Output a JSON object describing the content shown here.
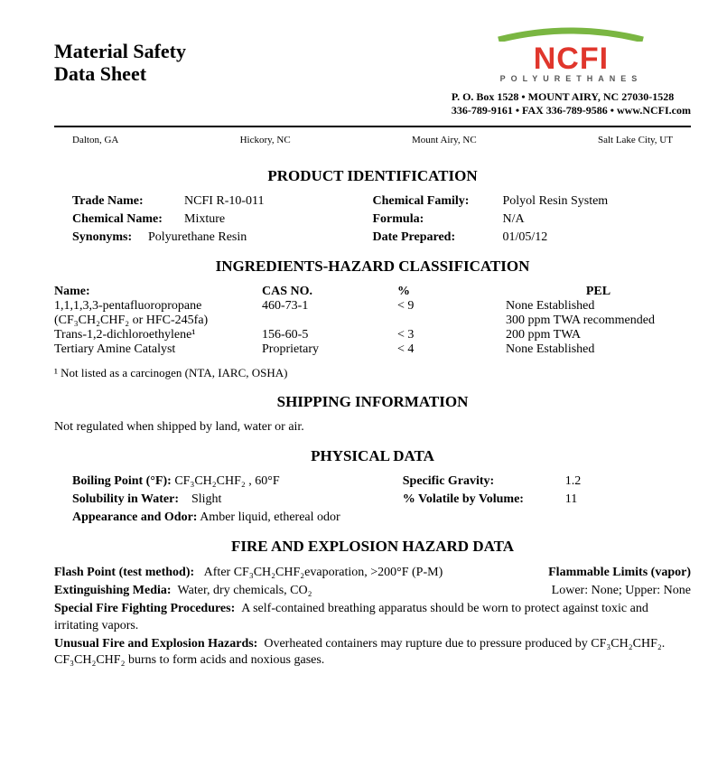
{
  "header": {
    "title_line1": "Material Safety",
    "title_line2": "Data Sheet",
    "logo_name": "NCFI",
    "logo_sub": "POLYURETHANES",
    "logo_color": "#e0362c",
    "arc_color": "#7ab642",
    "contact_line1": "P. O. Box 1528  •  MOUNT AIRY, NC  27030-1528",
    "contact_line2": "336-789-9161  •  FAX 336-789-9586  •  www.NCFI.com"
  },
  "locations": [
    "Dalton, GA",
    "Hickory, NC",
    "Mount Airy, NC",
    "Salt Lake City, UT"
  ],
  "sections": {
    "product_id": "PRODUCT IDENTIFICATION",
    "ingredients": "INGREDIENTS-HAZARD CLASSIFICATION",
    "shipping": "SHIPPING INFORMATION",
    "physical": "PHYSICAL DATA",
    "fire": "FIRE AND EXPLOSION HAZARD DATA"
  },
  "product": {
    "trade_name_label": "Trade Name:",
    "trade_name": "NCFI R-10-011",
    "chem_family_label": "Chemical Family:",
    "chem_family": "Polyol Resin System",
    "chem_name_label": "Chemical Name:",
    "chem_name": "Mixture",
    "formula_label": "Formula:",
    "formula": "N/A",
    "synonyms_label": "Synonyms:",
    "synonyms": "Polyurethane Resin",
    "date_label": "Date Prepared:",
    "date": "01/05/12"
  },
  "ingredients": {
    "headers": {
      "name": "Name:",
      "cas": "CAS NO.",
      "pct": "%",
      "pel": "PEL"
    },
    "rows": [
      {
        "name": "1,1,1,3,3-pentafluoropropane",
        "cas": "460-73-1",
        "pct": "< 9",
        "pel": "None Established"
      },
      {
        "name_html": "(CF₃CH₂CHF₂ or HFC-245fa)",
        "cas": "",
        "pct": "",
        "pel": "300 ppm TWA recommended"
      },
      {
        "name_html": "Trans-1,2-dichloroethylene¹",
        "cas": "156-60-5",
        "pct": "< 3",
        "pel": "200 ppm TWA"
      },
      {
        "name": "Tertiary Amine Catalyst",
        "cas": "Proprietary",
        "pct": "< 4",
        "pel": "None Established"
      }
    ],
    "footnote": "¹ Not listed as a carcinogen (NTA, IARC, OSHA)"
  },
  "shipping": {
    "text": "Not regulated when shipped by land, water or air."
  },
  "physical": {
    "bp_label": "Boiling Point (°F):",
    "bp_value": "CF₃CH₂CHF₂ , 60°F",
    "sg_label": "Specific Gravity:",
    "sg_value": "1.2",
    "sol_label": "Solubility in Water:",
    "sol_value": "Slight",
    "vol_label": "% Volatile by Volume:",
    "vol_value": "11",
    "appear_label": "Appearance and Odor:",
    "appear_value": "Amber liquid, ethereal odor"
  },
  "fire": {
    "flash_label": "Flash Point (test method):",
    "flash_value": "After CF₃CH₂CHF₂evaporation, >200°F (P-M)",
    "flam_label": "Flammable Limits (vapor)",
    "ext_label": "Extinguishing Media:",
    "ext_value": "Water, dry chemicals, CO₂",
    "limits_value": "Lower: None;   Upper: None",
    "special_label": "Special Fire Fighting Procedures:",
    "special_value": "A self-contained breathing apparatus should be worn to protect against toxic and irritating vapors.",
    "unusual_label": "Unusual Fire and Explosion Hazards:",
    "unusual_value": "Overheated containers may rupture due to pressure produced by CF₃CH₂CHF₂. CF₃CH₂CHF₂ burns to form acids and noxious gases."
  }
}
